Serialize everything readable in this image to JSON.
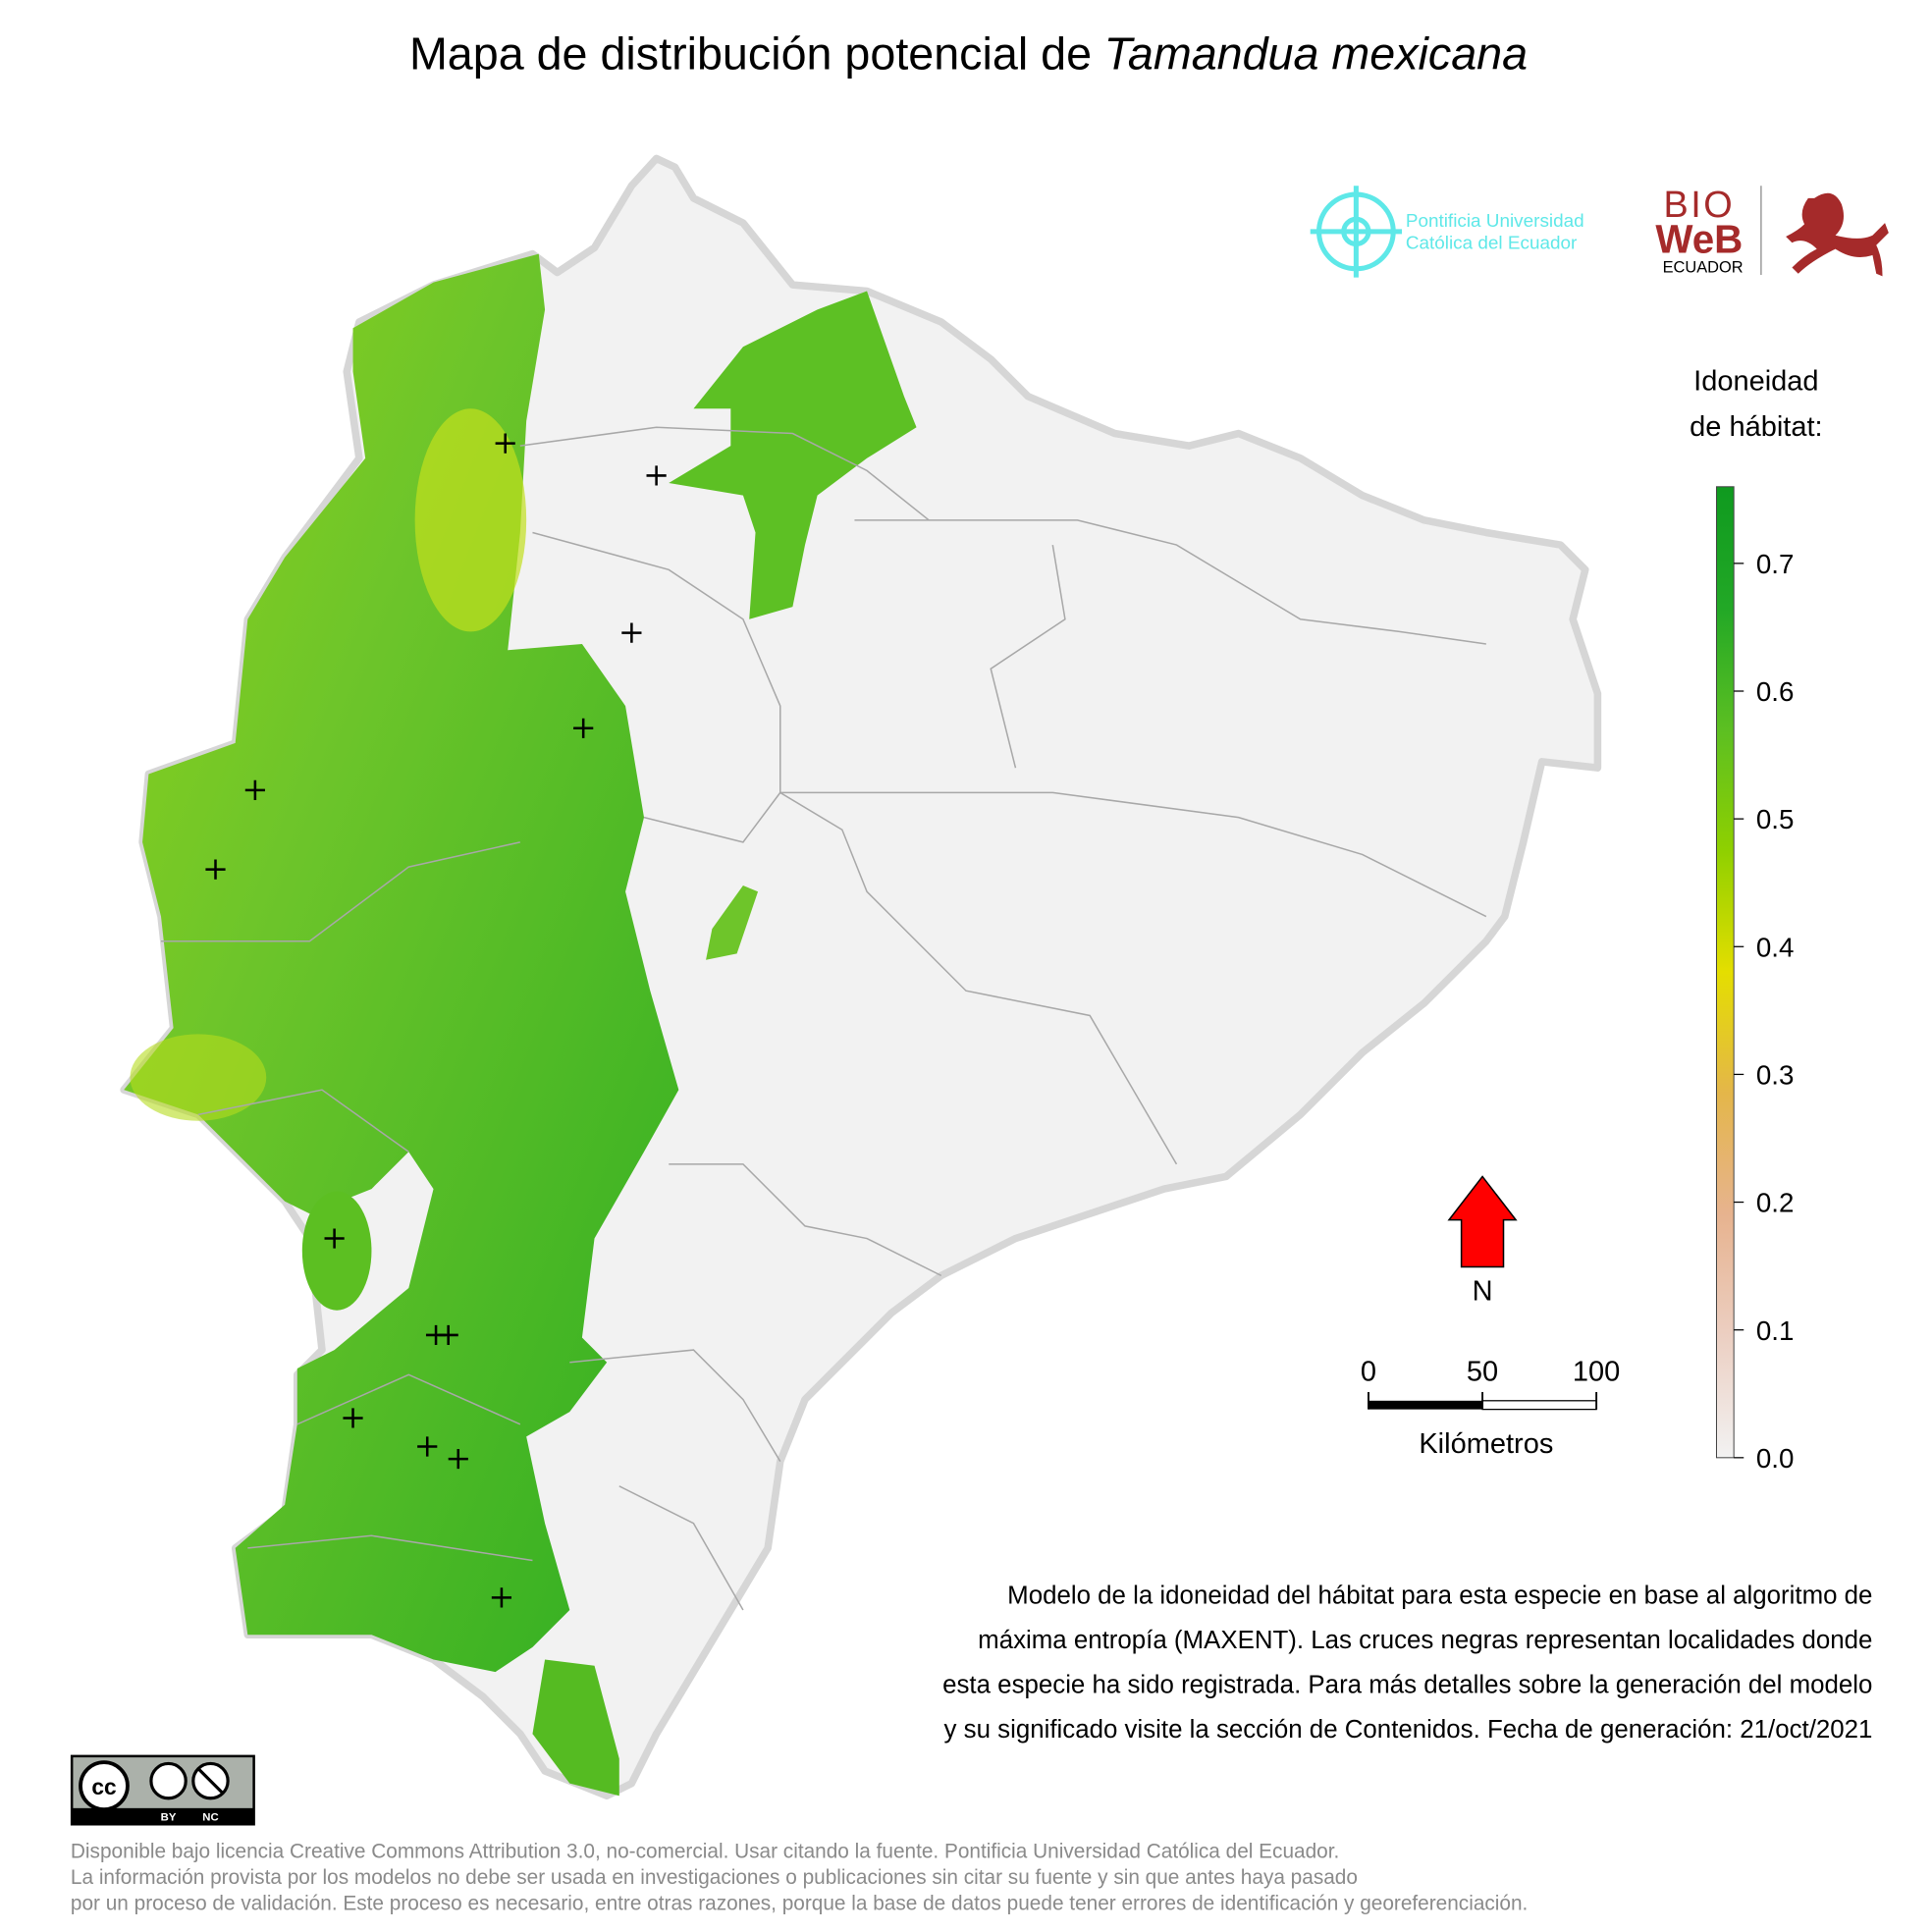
{
  "header": {
    "title": "Mapa de distribución potencial de",
    "species": "Tamandua mexicana"
  },
  "logos": {
    "puce": [
      "Pontificia Universidad",
      "Católica del Ecuador"
    ],
    "bioweb": [
      "BIO",
      "WeB",
      "ECUADOR"
    ]
  },
  "legend": {
    "title": [
      "Idoneidad",
      "de hábitat:"
    ],
    "range": [
      0,
      0.76
    ],
    "ticks": [
      {
        "value": 0,
        "label": "0.0"
      },
      0.1,
      0.2,
      0.3,
      0.4,
      0.5,
      0.6,
      0.7
    ],
    "colors": [
      "#f2f2f2",
      "#eccfc2",
      "#e7b38f",
      "#e4b64a",
      "#e4de00",
      "#8fd000",
      "#5cbf22",
      "#22a826",
      "#0f9a1f"
    ]
  },
  "north": "N",
  "scale_bar": {
    "ticks": [
      0,
      50,
      100
    ],
    "label": "Kilómetros"
  },
  "description": [
    "Modelo de la idoneidad del hábitat para esta especie en base al algoritmo de",
    "máxima entropía (MAXENT). Las cruces negras representan localidades donde",
    "esta especie ha sido registrada. Para más detalles sobre la generación del modelo",
    "y su significado visite la sección de Contenidos. Fecha de generación: 21/oct/2021"
  ],
  "license": {
    "badge": [
      "BY",
      "NC"
    ]
  },
  "footer": [
    "Disponible bajo licencia Creative Commons Attribution 3.0, no-comercial. Usar citando la fuente. Pontificia Universidad Católica del Ecuador.",
    "La información provista por los modelos no debe ser usada en investigaciones o publicaciones sin citar su fuente y sin que antes haya pasado",
    "por un proceso de validación. Este proceso es necesario, entre otras razones, porque la base de datos puede tener errores de identificación y georeferenciación."
  ]
}
